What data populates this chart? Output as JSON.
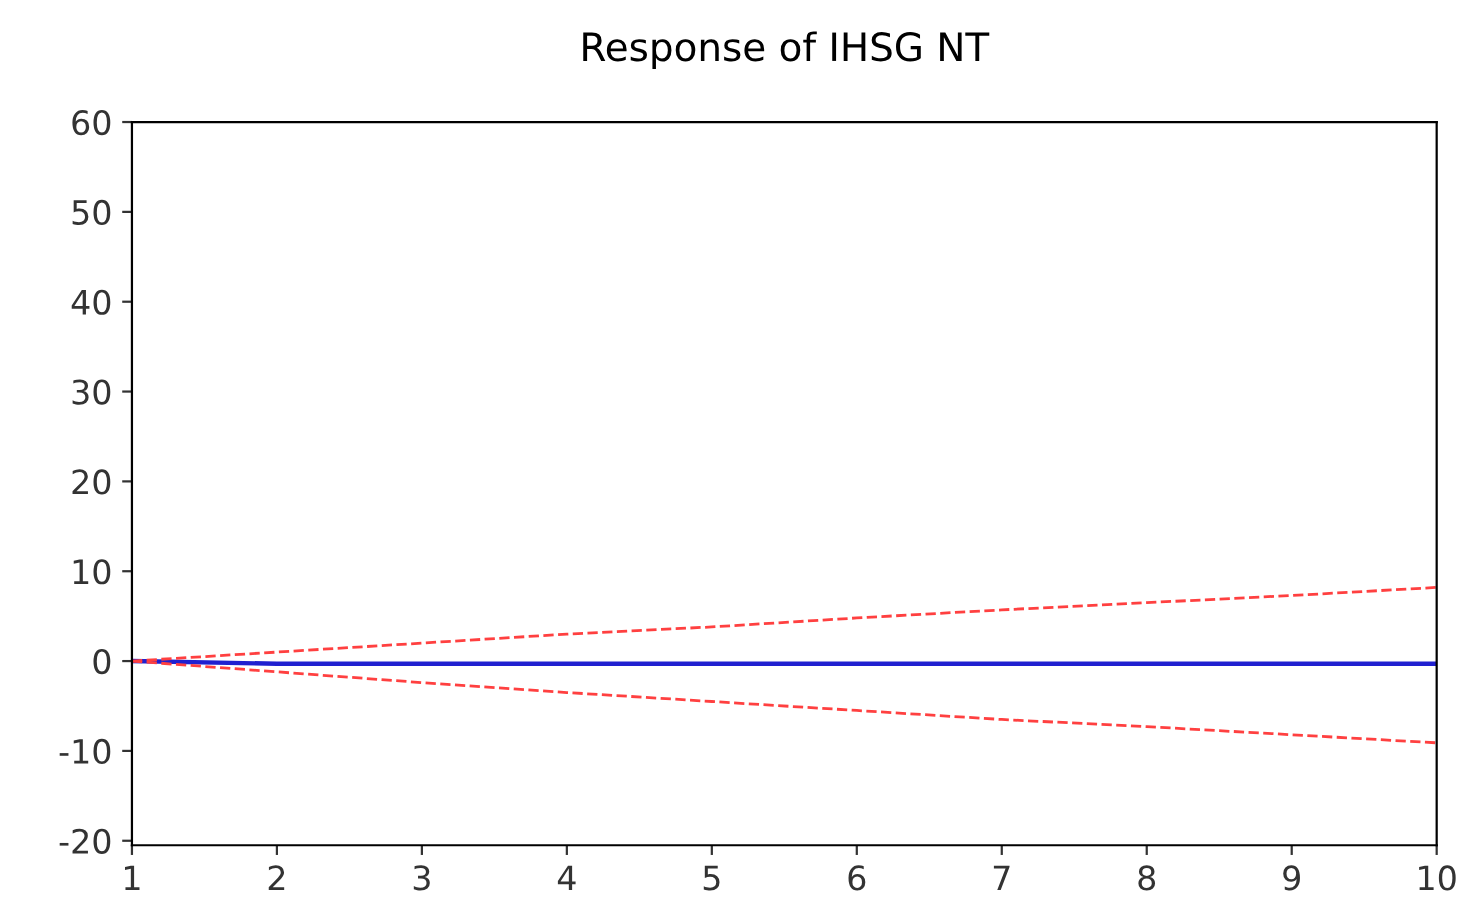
{
  "chart_data": {
    "type": "line",
    "title": "Response of IHSG NT",
    "x": [
      1,
      2,
      3,
      4,
      5,
      6,
      7,
      8,
      9,
      10
    ],
    "series": [
      {
        "color": "#2020d0",
        "line_style": "solid",
        "values": [
          0,
          -0.3,
          -0.3,
          -0.3,
          -0.3,
          -0.3,
          -0.3,
          -0.3,
          -0.3,
          -0.3
        ]
      },
      {
        "color": "#ff4040",
        "line_style": "dashed",
        "values": [
          0,
          1,
          2,
          3,
          3.8,
          4.8,
          5.7,
          6.5,
          7.3,
          8.2
        ]
      },
      {
        "color": "#ff4040",
        "line_style": "dashed",
        "values": [
          0,
          -1.2,
          -2.4,
          -3.5,
          -4.5,
          -5.5,
          -6.5,
          -7.3,
          -8.2,
          -9.1
        ]
      }
    ],
    "xlim": [
      1,
      10
    ],
    "ylim": [
      -20.5,
      60
    ],
    "xticks": [
      1,
      2,
      3,
      4,
      5,
      6,
      7,
      8,
      9,
      10
    ],
    "yticks": [
      -20,
      -10,
      0,
      10,
      20,
      30,
      40,
      50,
      60
    ],
    "grid": false,
    "legend": false,
    "marker": "none"
  }
}
